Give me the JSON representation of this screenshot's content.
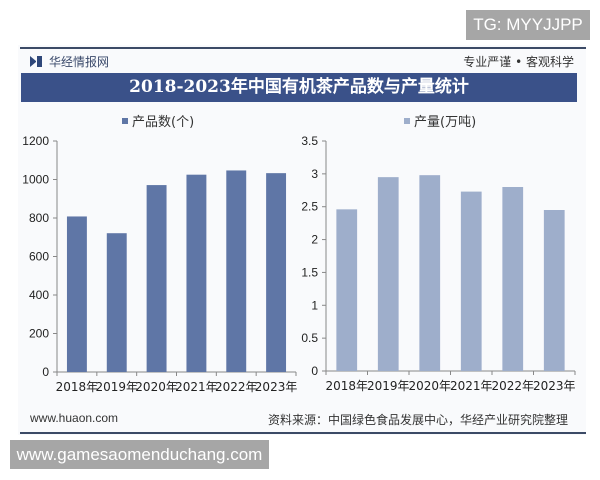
{
  "watermark_top": "TG: MYYJJPP",
  "watermark_bottom": "www.gamesaomenduchang.com",
  "header": {
    "brand": "华经情报网",
    "slogan": "专业严谨 • 客观科学"
  },
  "footer": {
    "website": "www.huaon.com",
    "source": "资料来源：中国绿色食品发展中心，华经产业研究院整理"
  },
  "chart_data": [
    {
      "type": "bar",
      "title": "2018-2023年中国有机茶产品数与产量统计",
      "categories": [
        "2018年",
        "2019年",
        "2020年",
        "2021年",
        "2022年",
        "2023年"
      ],
      "series": [
        {
          "name": "产品数(个)",
          "values": [
            808,
            721,
            971,
            1025,
            1047,
            1033
          ],
          "color": "#5f76a6"
        }
      ],
      "ylim": [
        0,
        1200
      ],
      "yticks": [
        "0",
        "200",
        "400",
        "600",
        "800",
        "1000",
        "1200"
      ],
      "legend": "top",
      "grid": false
    },
    {
      "type": "bar",
      "categories": [
        "2018年",
        "2019年",
        "2020年",
        "2021年",
        "2022年",
        "2023年"
      ],
      "series": [
        {
          "name": "产量(万吨)",
          "values": [
            2.46,
            2.95,
            2.98,
            2.73,
            2.8,
            2.45
          ],
          "color": "#9eaecb"
        }
      ],
      "ylim": [
        0,
        3.5
      ],
      "yticks": [
        "0",
        "0.5",
        "1",
        "1.5",
        "2",
        "2.5",
        "3",
        "3.5"
      ],
      "legend": "top",
      "grid": false
    }
  ]
}
